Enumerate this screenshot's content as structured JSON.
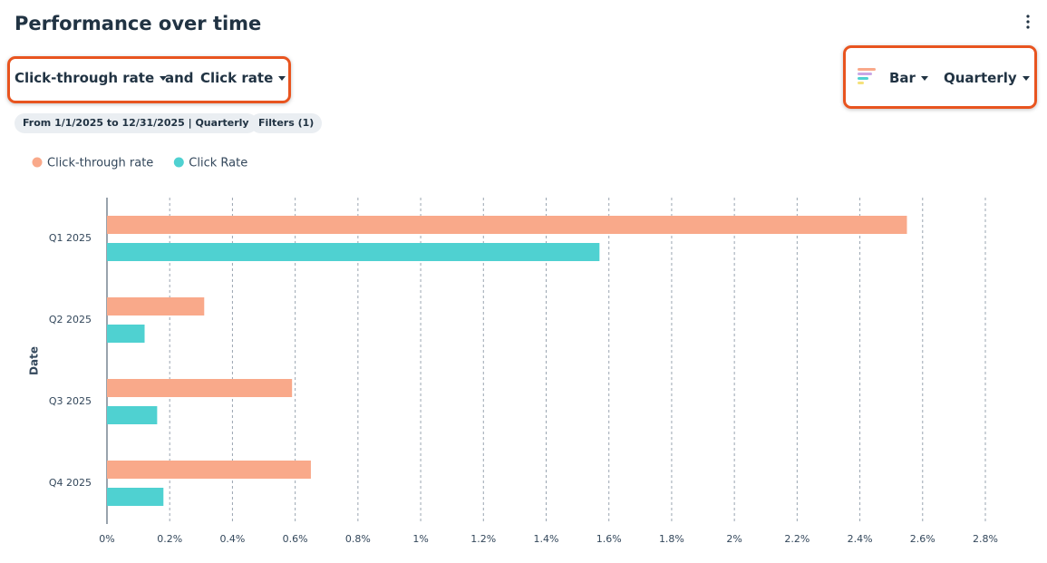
{
  "header": {
    "title": "Performance over time"
  },
  "controls": {
    "metric_1": "Click-through rate",
    "connector": "and",
    "metric_2": "Click rate",
    "chart_type": "Bar",
    "frequency": "Quarterly"
  },
  "filters": {
    "date_range": "From 1/1/2025 to 12/31/2025 | Quarterly",
    "filters": "Filters (1)"
  },
  "chart_data": {
    "type": "bar",
    "orientation": "horizontal",
    "y_label": "Date",
    "categories": [
      "Q1 2025",
      "Q2 2025",
      "Q3 2025",
      "Q4 2025"
    ],
    "series": [
      {
        "name": "Click-through rate",
        "color": "#f9a98a",
        "values": [
          2.55,
          0.31,
          0.59,
          0.65
        ]
      },
      {
        "name": "Click Rate",
        "color": "#4fd1d1",
        "values": [
          1.57,
          0.12,
          0.16,
          0.18
        ]
      }
    ],
    "xlim": [
      0,
      2.8
    ],
    "xticks": [
      {
        "value": 0,
        "label": "0%"
      },
      {
        "value": 0.2,
        "label": "0.2%"
      },
      {
        "value": 0.4,
        "label": "0.4%"
      },
      {
        "value": 0.6,
        "label": "0.6%"
      },
      {
        "value": 0.8,
        "label": "0.8%"
      },
      {
        "value": 1,
        "label": "1%"
      },
      {
        "value": 1.2,
        "label": "1.2%"
      },
      {
        "value": 1.4,
        "label": "1.4%"
      },
      {
        "value": 1.6,
        "label": "1.6%"
      },
      {
        "value": 1.8,
        "label": "1.8%"
      },
      {
        "value": 2,
        "label": "2%"
      },
      {
        "value": 2.2,
        "label": "2.2%"
      },
      {
        "value": 2.4,
        "label": "2.4%"
      },
      {
        "value": 2.6,
        "label": "2.6%"
      },
      {
        "value": 2.8,
        "label": "2.8%"
      }
    ],
    "grid": true
  }
}
